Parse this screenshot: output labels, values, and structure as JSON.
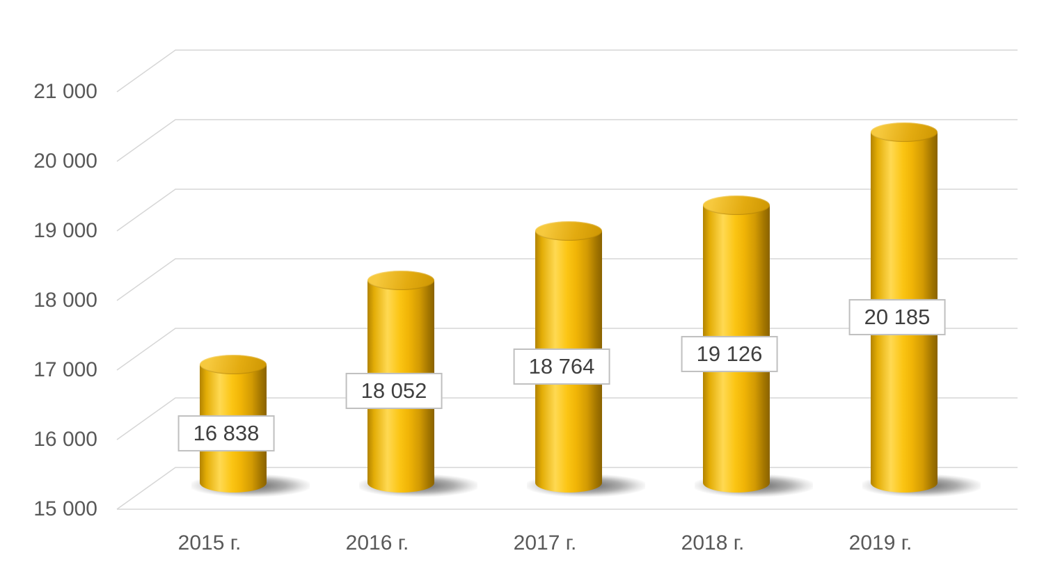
{
  "chart_data": {
    "type": "bar",
    "subtype": "cylinder-3d",
    "title": "",
    "xlabel": "",
    "ylabel": "",
    "categories": [
      "2015 г.",
      "2016 г.",
      "2017 г.",
      "2018 г.",
      "2019 г."
    ],
    "values": [
      16838,
      18052,
      18764,
      19126,
      20185
    ],
    "data_labels": [
      "16 838",
      "18 052",
      "18 764",
      "19 126",
      "20 185"
    ],
    "ylim": [
      15000,
      21000
    ],
    "yticks": [
      {
        "value": 21000,
        "label": "21 000"
      },
      {
        "value": 20000,
        "label": "20 000"
      },
      {
        "value": 19000,
        "label": "19 000"
      },
      {
        "value": 18000,
        "label": "18 000"
      },
      {
        "value": 17000,
        "label": "17 000"
      },
      {
        "value": 16000,
        "label": "16 000"
      },
      {
        "value": 15000,
        "label": "15 000"
      }
    ],
    "grid": true,
    "legend": false,
    "colors": {
      "background": "#ffffff",
      "gridline": "#d6d6d6",
      "axis_text": "#595959",
      "bar_highlight": "#ffd952",
      "bar_main": "#fbc514",
      "bar_dark": "#8a6300",
      "bar_top_light": "#f6c93e",
      "bar_top_dark": "#cf9804",
      "shadow": "#4a4a4a",
      "label_bg": "#ffffff",
      "label_border": "#bfbfbf",
      "label_text": "#3f3f3f"
    }
  }
}
